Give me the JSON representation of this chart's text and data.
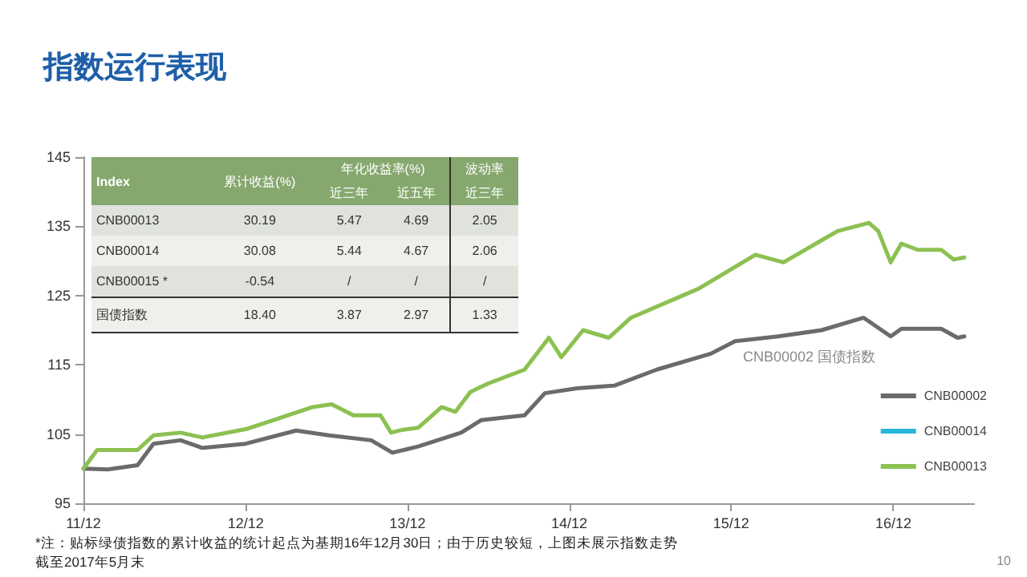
{
  "chart_data": [
    {
      "type": "line",
      "title": "指数运行表现",
      "xlim": [
        "2011-12-01",
        "2017-06-01"
      ],
      "xticks": [
        {
          "value": "2011-12-01",
          "label": "11/12"
        },
        {
          "value": "2012-12-01",
          "label": "12/12"
        },
        {
          "value": "2013-12-01",
          "label": "13/12"
        },
        {
          "value": "2014-12-01",
          "label": "14/12"
        },
        {
          "value": "2015-12-01",
          "label": "15/12"
        },
        {
          "value": "2016-12-01",
          "label": "16/12"
        }
      ],
      "ylim": [
        95,
        145
      ],
      "yticks": [
        95,
        105,
        115,
        125,
        135,
        145
      ],
      "grid": false,
      "legend": "bottom right",
      "marker": "none",
      "line_style": "solid",
      "series": [
        {
          "name": "CNB00002",
          "color": "#6b6b6b",
          "x": [
            "2011-12-01",
            "2012-01-25",
            "2012-04-01",
            "2012-05-07",
            "2012-07-07",
            "2012-08-25",
            "2012-12-01",
            "2013-03-25",
            "2013-06-07",
            "2013-09-10",
            "2013-10-28",
            "2013-12-25",
            "2014-04-01",
            "2014-05-16",
            "2014-08-22",
            "2014-10-07",
            "2014-12-19",
            "2015-03-13",
            "2015-06-16",
            "2015-10-16",
            "2015-12-10",
            "2016-03-16",
            "2016-06-22",
            "2016-09-25",
            "2016-11-25",
            "2016-12-19",
            "2017-03-19",
            "2017-04-25",
            "2017-05-10"
          ],
          "values": [
            100,
            99.9,
            100.5,
            103.6,
            104.1,
            103,
            103.6,
            105.5,
            104.8,
            104.1,
            102.3,
            103.2,
            105.2,
            107,
            107.7,
            110.9,
            111.6,
            112,
            114.3,
            116.6,
            118.4,
            119.1,
            120,
            121.8,
            119.1,
            120.2,
            120.2,
            118.9,
            119.1
          ]
        },
        {
          "name": "CNB00014",
          "color": "#2ab6d8"
        },
        {
          "name": "CNB00013",
          "color": "#8cc152",
          "x": [
            "2011-12-01",
            "2012-01-01",
            "2012-04-01",
            "2012-05-07",
            "2012-07-07",
            "2012-08-25",
            "2012-12-01",
            "2013-02-01",
            "2013-05-01",
            "2013-06-13",
            "2013-08-01",
            "2013-10-01",
            "2013-10-25",
            "2013-11-19",
            "2013-12-25",
            "2014-02-16",
            "2014-03-19",
            "2014-04-22",
            "2014-06-01",
            "2014-08-22",
            "2014-10-16",
            "2014-11-13",
            "2015-01-01",
            "2015-02-28",
            "2015-04-19",
            "2015-09-19",
            "2016-01-25",
            "2016-03-28",
            "2016-07-28",
            "2016-10-07",
            "2016-10-28",
            "2016-11-25",
            "2016-12-19",
            "2017-01-25",
            "2017-03-19",
            "2017-04-16",
            "2017-05-10"
          ],
          "values": [
            100,
            102.7,
            102.7,
            104.8,
            105.2,
            104.5,
            105.7,
            107,
            108.9,
            109.3,
            107.7,
            107.7,
            105.2,
            105.6,
            105.9,
            108.9,
            108.2,
            111.1,
            112.3,
            114.3,
            118.9,
            116.1,
            120,
            118.9,
            121.8,
            126,
            130.9,
            129.8,
            134.3,
            135.5,
            134.3,
            129.8,
            132.5,
            131.6,
            131.6,
            130.2,
            130.5
          ]
        }
      ],
      "annotations": [
        "CNB00002 国债指数",
        "*注：贴标绿债指数的累计收益的统计起点为基期16年12月30日；由于历史较短，上图未展示指数走势",
        "截至2017年5月末",
        "10"
      ]
    },
    {
      "type": "other",
      "annotations": [
        "Index",
        "累计收益(%)",
        "年化收益率(%)",
        "近三年",
        "近五年",
        "波动率",
        "近三年",
        "CNB00013",
        "30.19",
        "5.47",
        "4.69",
        "2.05",
        "CNB00014",
        "30.08",
        "5.44",
        "4.67",
        "2.06",
        "CNB00015 *",
        "-0.54",
        "/",
        "/",
        "/",
        "国债指数",
        "18.40",
        "3.87",
        "2.97",
        "1.33"
      ]
    }
  ]
}
